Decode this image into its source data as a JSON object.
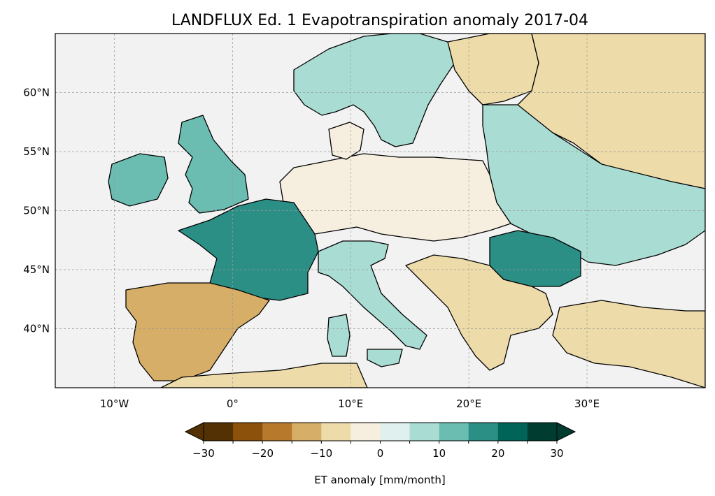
{
  "title": "LANDFLUX Ed. 1 Evapotranspiration anomaly 2017-04",
  "map": {
    "projection": "PlateCarree",
    "lon_range": [
      -15,
      40
    ],
    "lat_range": [
      35,
      65
    ],
    "ocean_color": "#f2f2f2",
    "coastline_color": "#000000",
    "gridlines": true,
    "lon_ticks": [
      {
        "value": -10,
        "label": "10°W"
      },
      {
        "value": 0,
        "label": "0°"
      },
      {
        "value": 10,
        "label": "10°E"
      },
      {
        "value": 20,
        "label": "20°E"
      },
      {
        "value": 30,
        "label": "30°E"
      }
    ],
    "lat_ticks": [
      {
        "value": 60,
        "label": "60°N"
      },
      {
        "value": 55,
        "label": "55°N"
      },
      {
        "value": 50,
        "label": "50°N"
      },
      {
        "value": 45,
        "label": "45°N"
      },
      {
        "value": 40,
        "label": "40°N"
      }
    ]
  },
  "colorbar": {
    "label": "ET anomaly [mm/month]",
    "extend": "both",
    "boundaries": [
      -30,
      -25,
      -20,
      -15,
      -10,
      -5,
      0,
      5,
      10,
      15,
      20,
      25,
      30
    ],
    "colors": [
      "#543005",
      "#8c510a",
      "#b77a2c",
      "#d6ae68",
      "#eedbaa",
      "#f6efdf",
      "#dff0ee",
      "#a9dcd3",
      "#6abdb0",
      "#2c8f86",
      "#016459",
      "#003c30"
    ],
    "under_color": "#543005",
    "over_color": "#003c30",
    "tick_values": [
      -30,
      -20,
      -10,
      0,
      10,
      20,
      30
    ],
    "tick_labels": [
      "−30",
      "−20",
      "−10",
      "0",
      "10",
      "20",
      "30"
    ]
  },
  "regions": [
    {
      "name": "iberia",
      "mean_anomaly": -12
    },
    {
      "name": "france",
      "mean_anomaly": 18
    },
    {
      "name": "british-isles",
      "mean_anomaly": 12
    },
    {
      "name": "scandinavia",
      "mean_anomaly": 6
    },
    {
      "name": "central-europe",
      "mean_anomaly": -5
    },
    {
      "name": "italy",
      "mean_anomaly": 6
    },
    {
      "name": "balkans",
      "mean_anomaly": -6
    },
    {
      "name": "romania",
      "mean_anomaly": 16
    },
    {
      "name": "eastern-europe",
      "mean_anomaly": 8
    },
    {
      "name": "western-russia",
      "mean_anomaly": -9
    },
    {
      "name": "finland",
      "mean_anomaly": -6
    },
    {
      "name": "turkey",
      "mean_anomaly": -8
    },
    {
      "name": "north-africa",
      "mean_anomaly": -10
    }
  ]
}
